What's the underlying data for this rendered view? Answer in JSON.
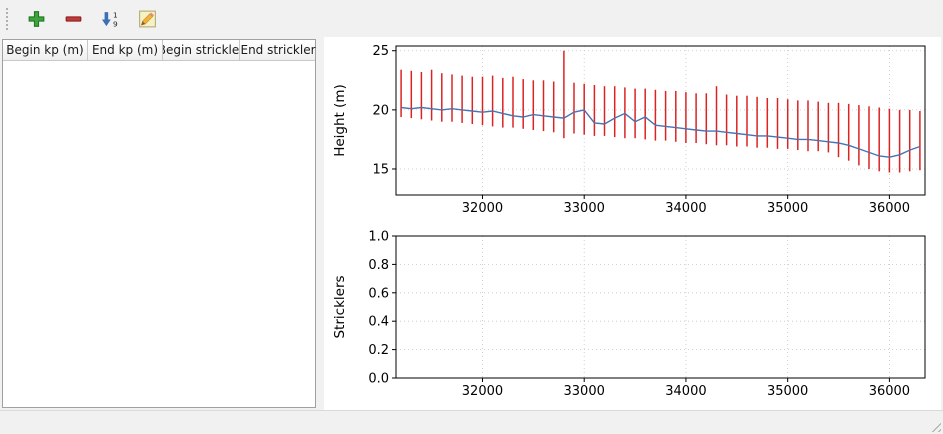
{
  "toolbar": {
    "buttons": [
      {
        "icon": "add-icon"
      },
      {
        "icon": "remove-icon"
      },
      {
        "icon": "sort-numeric-icon"
      },
      {
        "icon": "edit-icon"
      }
    ]
  },
  "table": {
    "headers": [
      "Begin kp (m)",
      "End kp (m)",
      "Begin strickler",
      "End strickler"
    ],
    "rows": []
  },
  "chart_data": [
    {
      "type": "vlines+line",
      "title": "",
      "xlabel": "",
      "ylabel": "Height (m)",
      "xlim": [
        31150,
        36350
      ],
      "ylim": [
        12.8,
        25.4
      ],
      "grid": true,
      "xticks": [
        32000,
        33000,
        34000,
        35000,
        36000
      ],
      "xtick_labels": [
        "32000",
        "33000",
        "34000",
        "35000",
        "36000"
      ],
      "yticks": [
        15,
        20,
        25
      ],
      "ytick_labels": [
        "15",
        "20",
        "25"
      ],
      "x": [
        31200,
        31300,
        31400,
        31500,
        31600,
        31700,
        31800,
        31900,
        32000,
        32100,
        32200,
        32300,
        32400,
        32500,
        32600,
        32700,
        32800,
        32900,
        33000,
        33100,
        33200,
        33300,
        33400,
        33500,
        33600,
        33700,
        33800,
        33900,
        34000,
        34100,
        34200,
        34300,
        34400,
        34500,
        34600,
        34700,
        34800,
        34900,
        35000,
        35100,
        35200,
        35300,
        35400,
        35500,
        35600,
        35700,
        35800,
        35900,
        36000,
        36100,
        36200,
        36300
      ],
      "series": [
        {
          "name": "cross-section-extent",
          "type": "vlines",
          "color": "#dd2222",
          "low": [
            19.4,
            19.3,
            19.2,
            19.1,
            19.0,
            19.0,
            18.9,
            18.8,
            18.7,
            18.6,
            18.5,
            18.5,
            18.4,
            18.3,
            18.2,
            18.1,
            17.6,
            18.0,
            17.9,
            17.8,
            17.8,
            17.7,
            17.6,
            17.6,
            17.5,
            17.4,
            17.4,
            17.3,
            17.2,
            17.2,
            17.1,
            17.0,
            17.0,
            16.9,
            16.9,
            16.8,
            16.8,
            16.7,
            16.7,
            16.6,
            16.5,
            16.5,
            16.4,
            16.0,
            15.7,
            15.3,
            15.0,
            14.8,
            14.7,
            14.7,
            14.8,
            14.9
          ],
          "high": [
            23.4,
            23.3,
            23.2,
            23.4,
            23.1,
            23.0,
            22.9,
            22.8,
            22.8,
            22.9,
            22.7,
            22.8,
            22.6,
            22.5,
            22.5,
            22.4,
            25.0,
            22.3,
            22.2,
            22.1,
            22.0,
            22.0,
            21.9,
            21.8,
            21.8,
            21.7,
            21.6,
            21.6,
            21.5,
            21.4,
            21.4,
            22.0,
            21.3,
            21.2,
            21.2,
            21.1,
            21.0,
            21.0,
            20.9,
            20.8,
            20.8,
            20.7,
            20.6,
            20.6,
            20.5,
            20.4,
            20.3,
            20.2,
            20.1,
            20.0,
            20.0,
            19.9
          ]
        },
        {
          "name": "mean-height-line",
          "type": "line",
          "color": "#4a72b0",
          "values": [
            20.2,
            20.1,
            20.2,
            20.1,
            20.0,
            20.1,
            20.0,
            19.9,
            19.8,
            19.9,
            19.7,
            19.5,
            19.4,
            19.6,
            19.5,
            19.4,
            19.3,
            19.8,
            20.0,
            18.9,
            18.8,
            19.3,
            19.7,
            19.0,
            19.4,
            18.7,
            18.6,
            18.5,
            18.4,
            18.3,
            18.2,
            18.2,
            18.1,
            18.0,
            17.9,
            17.8,
            17.8,
            17.7,
            17.6,
            17.5,
            17.5,
            17.4,
            17.3,
            17.2,
            17.0,
            16.7,
            16.4,
            16.1,
            16.0,
            16.2,
            16.6,
            16.9
          ]
        }
      ]
    },
    {
      "type": "line",
      "title": "",
      "xlabel": "",
      "ylabel": "Stricklers",
      "xlim": [
        31150,
        36350
      ],
      "ylim": [
        0.0,
        1.0
      ],
      "grid": true,
      "xticks": [
        32000,
        33000,
        34000,
        35000,
        36000
      ],
      "xtick_labels": [
        "32000",
        "33000",
        "34000",
        "35000",
        "36000"
      ],
      "yticks": [
        0.0,
        0.2,
        0.4,
        0.6,
        0.8,
        1.0
      ],
      "ytick_labels": [
        "0.0",
        "0.2",
        "0.4",
        "0.6",
        "0.8",
        "1.0"
      ],
      "x": [],
      "series": []
    }
  ]
}
